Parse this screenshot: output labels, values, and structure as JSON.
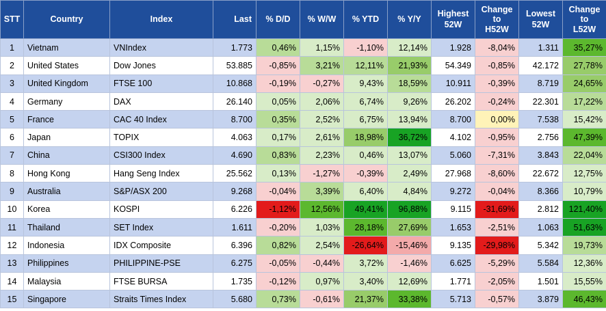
{
  "headers": [
    "STT",
    "Country",
    "Index",
    "Last",
    "% D/D",
    "% W/W",
    "% YTD",
    "% Y/Y",
    "Highest\n52W",
    "Change\nto\nH52W",
    "Lowest\n52W",
    "Change\nto\nL52W"
  ],
  "colors": {
    "header_bg": "#1f4e9b",
    "row_alt": "#c5d3ef",
    "g1": "#d8ecc8",
    "g2": "#b8dc98",
    "g3": "#98cc6a",
    "g4": "#5cb82e",
    "g5": "#18a324",
    "p1": "#f8d0d0",
    "p2": "#f3aaaa",
    "red": "#e31b1b",
    "yellow": "#fff3b8"
  },
  "rows": [
    {
      "stt": "1",
      "country": "Vietnam",
      "index": "VNIndex",
      "last": "1.773",
      "dd": "0,46%",
      "ww": "1,15%",
      "ytd": "-1,10%",
      "yy": "12,14%",
      "h52": "1.928",
      "ch52": "-8,04%",
      "l52": "1.311",
      "cl52": "35,27%",
      "c": {
        "dd": "g2",
        "ww": "g1",
        "ytd": "p1",
        "yy": "g1",
        "ch52": "p1",
        "cl52": "g4"
      }
    },
    {
      "stt": "2",
      "country": "United States",
      "index": "Dow Jones",
      "last": "53.885",
      "dd": "-0,85%",
      "ww": "3,21%",
      "ytd": "12,11%",
      "yy": "21,93%",
      "h52": "54.349",
      "ch52": "-0,85%",
      "l52": "42.172",
      "cl52": "27,78%",
      "c": {
        "dd": "p1",
        "ww": "g2",
        "ytd": "g2",
        "yy": "g3",
        "ch52": "p1",
        "cl52": "g3"
      }
    },
    {
      "stt": "3",
      "country": "United Kingdom",
      "index": "FTSE 100",
      "last": "10.868",
      "dd": "-0,19%",
      "ww": "-0,27%",
      "ytd": "9,43%",
      "yy": "18,59%",
      "h52": "10.911",
      "ch52": "-0,39%",
      "l52": "8.719",
      "cl52": "24,65%",
      "c": {
        "dd": "p1",
        "ww": "p1",
        "ytd": "g1",
        "yy": "g2",
        "ch52": "p1",
        "cl52": "g3"
      }
    },
    {
      "stt": "4",
      "country": "Germany",
      "index": "DAX",
      "last": "26.140",
      "dd": "0,05%",
      "ww": "2,06%",
      "ytd": "6,74%",
      "yy": "9,26%",
      "h52": "26.202",
      "ch52": "-0,24%",
      "l52": "22.301",
      "cl52": "17,22%",
      "c": {
        "dd": "g1",
        "ww": "g1",
        "ytd": "g1",
        "yy": "g1",
        "ch52": "p1",
        "cl52": "g2"
      }
    },
    {
      "stt": "5",
      "country": "France",
      "index": "CAC 40 Index",
      "last": "8.700",
      "dd": "0,35%",
      "ww": "2,52%",
      "ytd": "6,75%",
      "yy": "13,94%",
      "h52": "8.700",
      "ch52": "0,00%",
      "l52": "7.538",
      "cl52": "15,42%",
      "c": {
        "dd": "g2",
        "ww": "g1",
        "ytd": "g1",
        "yy": "g1",
        "ch52": "yl",
        "cl52": "g1"
      }
    },
    {
      "stt": "6",
      "country": "Japan",
      "index": "TOPIX",
      "last": "4.063",
      "dd": "0,17%",
      "ww": "2,61%",
      "ytd": "18,98%",
      "yy": "36,72%",
      "h52": "4.102",
      "ch52": "-0,95%",
      "l52": "2.756",
      "cl52": "47,39%",
      "c": {
        "dd": "g1",
        "ww": "g1",
        "ytd": "g3",
        "yy": "g5",
        "ch52": "p1",
        "cl52": "g4"
      }
    },
    {
      "stt": "7",
      "country": "China",
      "index": "CSI300 Index",
      "last": "4.690",
      "dd": "0,83%",
      "ww": "2,23%",
      "ytd": "0,46%",
      "yy": "13,07%",
      "h52": "5.060",
      "ch52": "-7,31%",
      "l52": "3.843",
      "cl52": "22,04%",
      "c": {
        "dd": "g2",
        "ww": "g1",
        "ytd": "g1",
        "yy": "g1",
        "ch52": "p1",
        "cl52": "g2"
      }
    },
    {
      "stt": "8",
      "country": "Hong Kong",
      "index": "Hang Seng Index",
      "last": "25.562",
      "dd": "0,13%",
      "ww": "-1,27%",
      "ytd": "-0,39%",
      "yy": "2,49%",
      "h52": "27.968",
      "ch52": "-8,60%",
      "l52": "22.672",
      "cl52": "12,75%",
      "c": {
        "dd": "g1",
        "ww": "p1",
        "ytd": "p1",
        "yy": "g1",
        "ch52": "p1",
        "cl52": "g1"
      }
    },
    {
      "stt": "9",
      "country": "Australia",
      "index": "S&P/ASX 200",
      "last": "9.268",
      "dd": "-0,04%",
      "ww": "3,39%",
      "ytd": "6,40%",
      "yy": "4,84%",
      "h52": "9.272",
      "ch52": "-0,04%",
      "l52": "8.366",
      "cl52": "10,79%",
      "c": {
        "dd": "p1",
        "ww": "g2",
        "ytd": "g1",
        "yy": "g1",
        "ch52": "p1",
        "cl52": "g1"
      }
    },
    {
      "stt": "10",
      "country": "Korea",
      "index": "KOSPI",
      "last": "6.226",
      "dd": "-1,12%",
      "ww": "12,56%",
      "ytd": "49,41%",
      "yy": "96,88%",
      "h52": "9.115",
      "ch52": "-31,69%",
      "l52": "2.812",
      "cl52": "121,40%",
      "c": {
        "dd": "rd",
        "ww": "g4",
        "ytd": "g5",
        "yy": "g5",
        "ch52": "rd",
        "cl52": "g5"
      }
    },
    {
      "stt": "11",
      "country": "Thailand",
      "index": "SET Index",
      "last": "1.611",
      "dd": "-0,20%",
      "ww": "1,03%",
      "ytd": "28,18%",
      "yy": "27,69%",
      "h52": "1.653",
      "ch52": "-2,51%",
      "l52": "1.063",
      "cl52": "51,63%",
      "c": {
        "dd": "p1",
        "ww": "g1",
        "ytd": "g4",
        "yy": "g3",
        "ch52": "p1",
        "cl52": "g5"
      }
    },
    {
      "stt": "12",
      "country": "Indonesia",
      "index": "IDX Composite",
      "last": "6.396",
      "dd": "0,82%",
      "ww": "2,54%",
      "ytd": "-26,64%",
      "yy": "-15,46%",
      "h52": "9.135",
      "ch52": "-29,98%",
      "l52": "5.342",
      "cl52": "19,73%",
      "c": {
        "dd": "g2",
        "ww": "g1",
        "ytd": "rd",
        "yy": "p2",
        "ch52": "rd",
        "cl52": "g2"
      }
    },
    {
      "stt": "13",
      "country": "Philippines",
      "index": "PHILIPPINE-PSE",
      "last": "6.275",
      "dd": "-0,05%",
      "ww": "-0,44%",
      "ytd": "3,72%",
      "yy": "-1,46%",
      "h52": "6.625",
      "ch52": "-5,29%",
      "l52": "5.584",
      "cl52": "12,36%",
      "c": {
        "dd": "p1",
        "ww": "p1",
        "ytd": "g1",
        "yy": "p1",
        "ch52": "p1",
        "cl52": "g1"
      }
    },
    {
      "stt": "14",
      "country": "Malaysia",
      "index": "FTSE BURSA",
      "last": "1.735",
      "dd": "-0,12%",
      "ww": "0,97%",
      "ytd": "3,40%",
      "yy": "12,69%",
      "h52": "1.771",
      "ch52": "-2,05%",
      "l52": "1.501",
      "cl52": "15,55%",
      "c": {
        "dd": "p1",
        "ww": "g1",
        "ytd": "g1",
        "yy": "g1",
        "ch52": "p1",
        "cl52": "g1"
      }
    },
    {
      "stt": "15",
      "country": "Singapore",
      "index": "Straits Times Index",
      "last": "5.680",
      "dd": "0,73%",
      "ww": "-0,61%",
      "ytd": "21,37%",
      "yy": "33,38%",
      "h52": "5.713",
      "ch52": "-0,57%",
      "l52": "3.879",
      "cl52": "46,43%",
      "c": {
        "dd": "g2",
        "ww": "p1",
        "ytd": "g3",
        "yy": "g4",
        "ch52": "p1",
        "cl52": "g4"
      }
    }
  ]
}
